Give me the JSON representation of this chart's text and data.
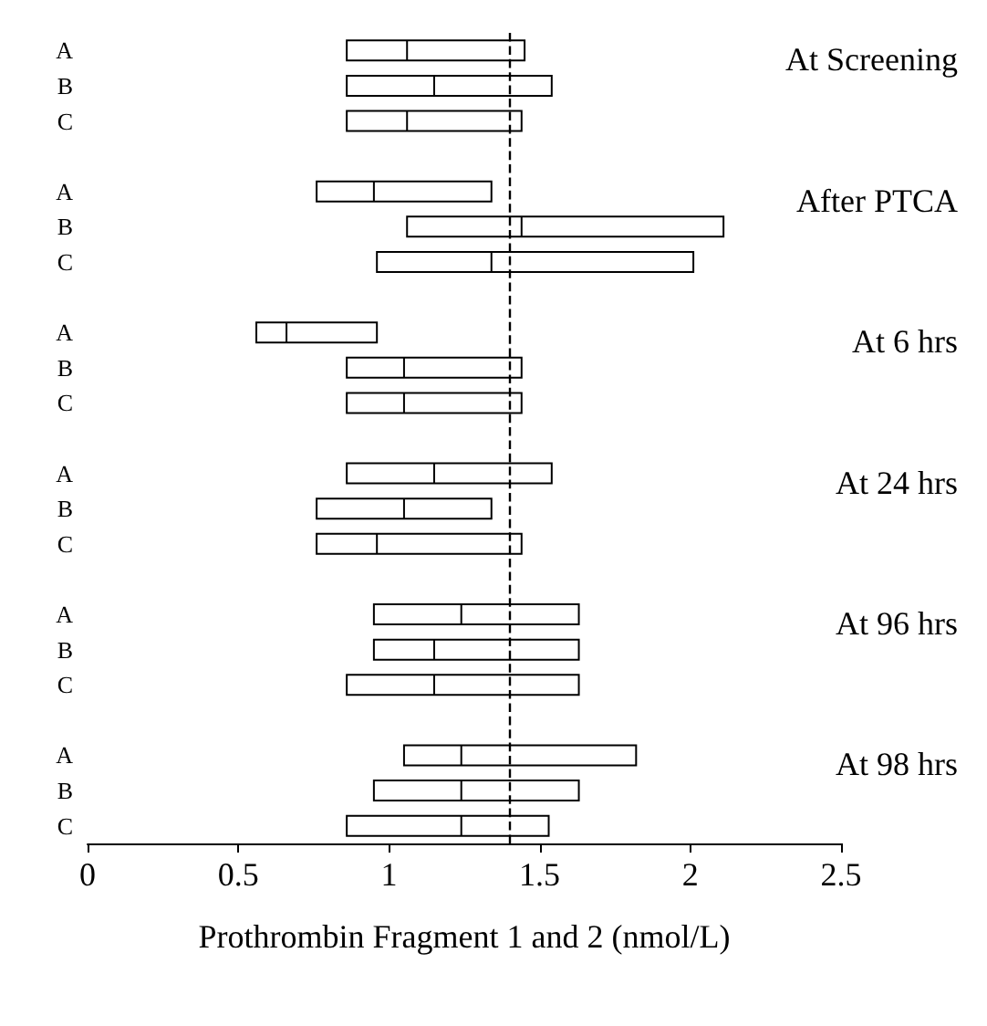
{
  "chart_data": {
    "type": "box",
    "orientation": "horizontal",
    "xlabel": "Prothrombin Fragment 1 and 2 (nmol/L)",
    "categories": [
      "A",
      "B",
      "C",
      null,
      "A",
      "B",
      "C",
      null,
      "A",
      "B",
      "C",
      null,
      "A",
      "B",
      "C",
      null,
      "A",
      "B",
      "C",
      null,
      "A",
      "B",
      "C"
    ],
    "boxes": [
      {
        "low": 0.86,
        "q1": 0.86,
        "median": 1.06,
        "q3": 1.45,
        "high": 1.45
      },
      {
        "low": 0.86,
        "q1": 0.86,
        "median": 1.15,
        "q3": 1.54,
        "high": 1.54
      },
      {
        "low": 0.86,
        "q1": 0.86,
        "median": 1.06,
        "q3": 1.44,
        "high": 1.44
      },
      null,
      {
        "low": 0.76,
        "q1": 0.76,
        "median": 0.95,
        "q3": 1.34,
        "high": 1.34
      },
      {
        "low": 1.06,
        "q1": 1.06,
        "median": 1.44,
        "q3": 2.11,
        "high": 2.11
      },
      {
        "low": 0.96,
        "q1": 0.96,
        "median": 1.34,
        "q3": 2.01,
        "high": 2.01
      },
      null,
      {
        "low": 0.56,
        "q1": 0.56,
        "median": 0.66,
        "q3": 0.96,
        "high": 0.96
      },
      {
        "low": 0.86,
        "q1": 0.86,
        "median": 1.05,
        "q3": 1.44,
        "high": 1.44
      },
      {
        "low": 0.86,
        "q1": 0.86,
        "median": 1.05,
        "q3": 1.44,
        "high": 1.44
      },
      null,
      {
        "low": 0.86,
        "q1": 0.86,
        "median": 1.15,
        "q3": 1.54,
        "high": 1.54
      },
      {
        "low": 0.76,
        "q1": 0.76,
        "median": 1.05,
        "q3": 1.34,
        "high": 1.34
      },
      {
        "low": 0.76,
        "q1": 0.76,
        "median": 0.96,
        "q3": 1.44,
        "high": 1.44
      },
      null,
      {
        "low": 0.95,
        "q1": 0.95,
        "median": 1.24,
        "q3": 1.63,
        "high": 1.63
      },
      {
        "low": 0.95,
        "q1": 0.95,
        "median": 1.15,
        "q3": 1.63,
        "high": 1.63
      },
      {
        "low": 0.86,
        "q1": 0.86,
        "median": 1.15,
        "q3": 1.63,
        "high": 1.63
      },
      null,
      {
        "low": 1.05,
        "q1": 1.05,
        "median": 1.24,
        "q3": 1.82,
        "high": 1.82
      },
      {
        "low": 0.95,
        "q1": 0.95,
        "median": 1.24,
        "q3": 1.63,
        "high": 1.63
      },
      {
        "low": 0.86,
        "q1": 0.86,
        "median": 1.24,
        "q3": 1.53,
        "high": 1.53
      }
    ],
    "color": "#000000",
    "xlim": [
      0,
      2.5
    ],
    "xticks": [
      0,
      0.5,
      1,
      1.5,
      2,
      2.5
    ],
    "ref_lines": [
      {
        "axis": "x",
        "value": 1.4,
        "label": null,
        "color": "#000000",
        "line_style": "dashed"
      }
    ],
    "annotations": [
      "At Screening",
      "After PTCA",
      "At 6 hrs",
      "At 24 hrs",
      "At 96 hrs",
      "At 98 hrs"
    ],
    "grid": false
  }
}
